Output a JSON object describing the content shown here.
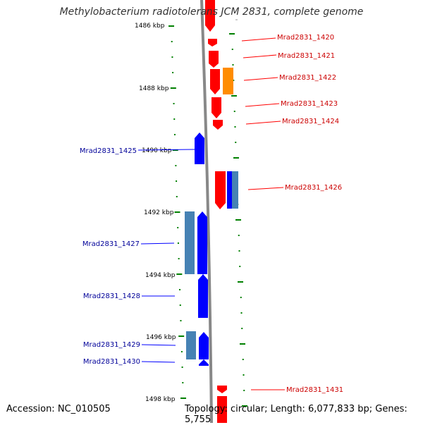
{
  "title": "Methylobacterium radiotolerans JCM 2831, complete genome",
  "footer": {
    "accession": "Accession: NC_010505",
    "topology": "Topology: circular; Length: 6,077,833 bp; Genes: 5,755"
  },
  "colors": {
    "plus_strand_gene": "#ff0000",
    "minus_strand_gene": "#0000ff",
    "orange_feature": "#ff8c00",
    "steelblue_feature": "#4682b4",
    "backbone": "#888888",
    "tick": "#008000",
    "plus_label": "#cc0000",
    "minus_label": "#000099"
  },
  "scale_labels": [
    "1486 kbp",
    "1488 kbp",
    "1490 kbp",
    "1492 kbp",
    "1494 kbp",
    "1496 kbp",
    "1498 kbp"
  ],
  "genes_plus": [
    {
      "label": "Mrad2831_1420"
    },
    {
      "label": "Mrad2831_1421"
    },
    {
      "label": "Mrad2831_1422"
    },
    {
      "label": "Mrad2831_1423"
    },
    {
      "label": "Mrad2831_1424"
    },
    {
      "label": "Mrad2831_1426"
    },
    {
      "label": "Mrad2831_1431"
    }
  ],
  "genes_minus": [
    {
      "label": "Mrad2831_1425"
    },
    {
      "label": "Mrad2831_1427"
    },
    {
      "label": "Mrad2831_1428"
    },
    {
      "label": "Mrad2831_1429"
    },
    {
      "label": "Mrad2831_1430"
    }
  ]
}
